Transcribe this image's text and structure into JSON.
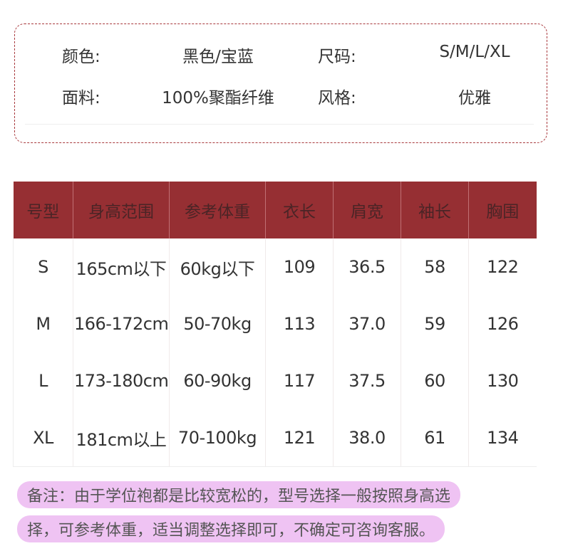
{
  "specs": {
    "color_label": "颜色:",
    "color_value": "黑色/宝蓝",
    "size_label": "尺码:",
    "size_value": "S/M/L/XL",
    "fabric_label": "面料:",
    "fabric_value": "100%聚酯纤维",
    "style_label": "风格:",
    "style_value": "优雅"
  },
  "table": {
    "headers": [
      "号型",
      "身高范围",
      "参考体重",
      "衣长",
      "肩宽",
      "袖长",
      "胸围"
    ],
    "rows": [
      [
        "S",
        "165cm以下",
        "60kg以下",
        "109",
        "36.5",
        "58",
        "122"
      ],
      [
        "M",
        "166-172cm",
        "50-70kg",
        "113",
        "37.0",
        "59",
        "126"
      ],
      [
        "L",
        "173-180cm",
        "60-90kg",
        "117",
        "37.5",
        "60",
        "130"
      ],
      [
        "XL",
        "181cm以上",
        "70-100kg",
        "121",
        "38.0",
        "61",
        "134"
      ]
    ]
  },
  "note": {
    "line1": "备注：由于学位袍都是比较宽松的，型号选择一般按照身高选",
    "line2": "择，可参考体重，适当调整选择即可，不确定可咨询客服。"
  },
  "colors": {
    "header_bg": "#962f33",
    "border": "#a8383c",
    "highlight": "#efc3f3"
  }
}
